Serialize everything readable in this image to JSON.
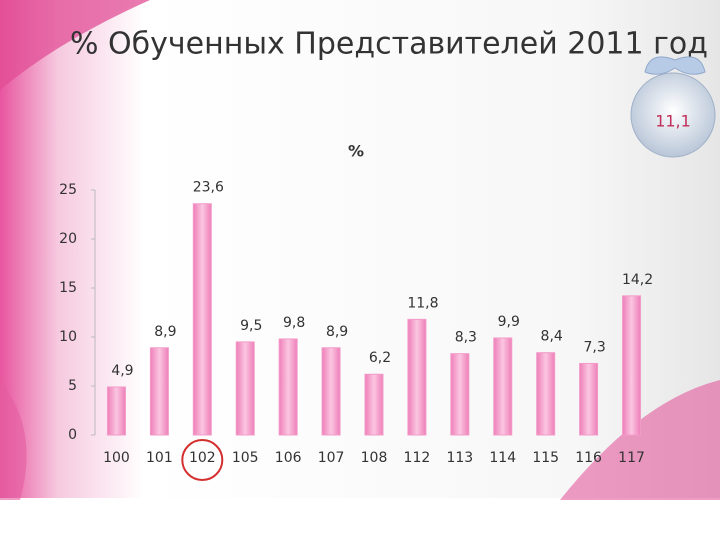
{
  "chart_data": {
    "type": "bar",
    "title": "% Обученных Представителей 2011 год",
    "subtitle": "%",
    "annotation": "11,1",
    "categories": [
      "100",
      "101",
      "102",
      "105",
      "106",
      "107",
      "108",
      "112",
      "113",
      "114",
      "115",
      "116",
      "117"
    ],
    "values": [
      4.9,
      8.9,
      23.6,
      9.5,
      9.8,
      8.9,
      6.2,
      11.8,
      8.3,
      9.9,
      8.4,
      7.3,
      14.2
    ],
    "value_labels": [
      "4,9",
      "8,9",
      "23,6",
      "9,5",
      "9,8",
      "8,9",
      "6,2",
      "11,8",
      "8,3",
      "9,9",
      "8,4",
      "7,3",
      "14,2"
    ],
    "color": "#f39bc9",
    "highlight": "102",
    "highlight_color": "#d32f2f",
    "ylim": [
      0,
      25
    ],
    "yticks": [
      0,
      5,
      10,
      15,
      20,
      25
    ],
    "grid": false
  }
}
